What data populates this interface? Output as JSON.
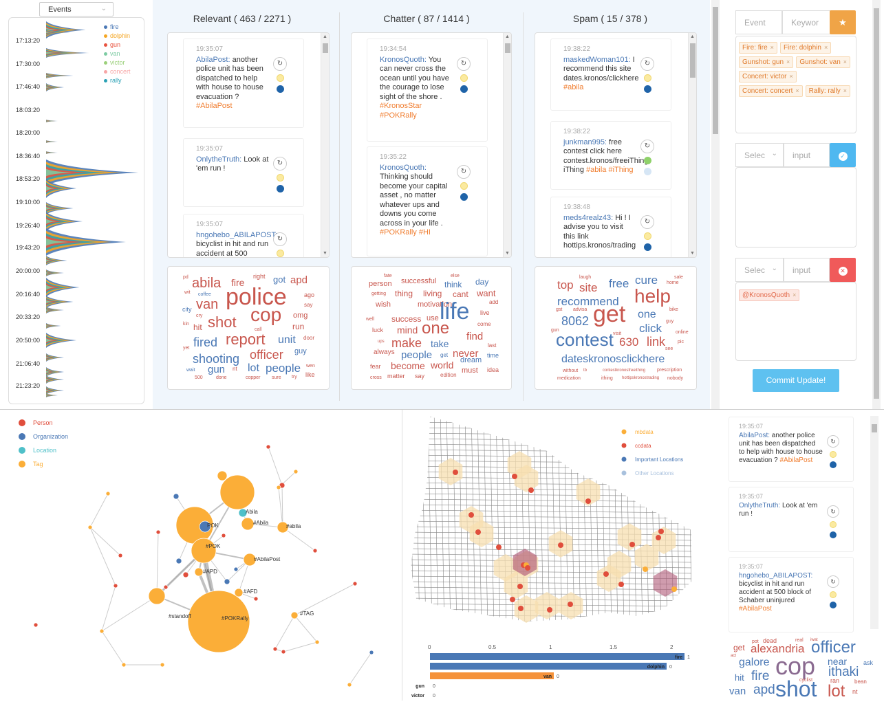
{
  "events_select": {
    "label": "Events"
  },
  "legend": [
    {
      "name": "fire",
      "color": "#4a78b5"
    },
    {
      "name": "dolphin",
      "color": "#f5a623"
    },
    {
      "name": "gun",
      "color": "#e8533f"
    },
    {
      "name": "van",
      "color": "#7ccba2"
    },
    {
      "name": "victor",
      "color": "#9bd07a"
    },
    {
      "name": "concert",
      "color": "#f7a6a6"
    },
    {
      "name": "rally",
      "color": "#2aa1b5"
    }
  ],
  "times": [
    "17:13:20",
    "17:30:00",
    "17:46:40",
    "18:03:20",
    "18:20:00",
    "18:36:40",
    "18:53:20",
    "19:10:00",
    "19:26:40",
    "19:43:20",
    "20:00:00",
    "20:16:40",
    "20:33:20",
    "20:50:00",
    "21:06:40",
    "21:23:20"
  ],
  "columns": {
    "relevant": "Relevant ( 463 / 2271 )",
    "chatter": "Chatter ( 87 / 1414 )",
    "spam": "Spam ( 15 / 378 )"
  },
  "relevant_cards": [
    {
      "ts": "19:35:07",
      "user": "AbilaPost:",
      "text": " another police unit has been dispatched to help with house to house evacuation ? ",
      "tag": "#AbilaPost"
    },
    {
      "ts": "19:35:07",
      "user": "OnlytheTruth:",
      "text": " Look at 'em run !",
      "tag": ""
    },
    {
      "ts": "19:35:07",
      "user": "hngohebo_ABILAPOST:",
      "text": " bicyclist in hit and run accident at 500",
      "tag": ""
    }
  ],
  "chatter_cards": [
    {
      "ts": "19:34:54",
      "user": "KronosQuoth:",
      "text": " You can never cross the ocean until you have the courage to lose sight of the shore . ",
      "tag": "#KronosStar #POKRally"
    },
    {
      "ts": "19:35:22",
      "user": "KronosQuoth:",
      "text": " Thinking should become your capital asset , no matter whatever ups and downs you come across in your life . ",
      "tag": "#POKRally #HI"
    }
  ],
  "spam_cards": [
    {
      "ts": "19:38:22",
      "user": "maskedWoman101:",
      "text": " I recommend this site dates.kronos/clickhere ",
      "tag": "#abila"
    },
    {
      "ts": "19:38:22",
      "user": "junkman995:",
      "text": " free contest click here contest.kronos/freeiThing iThing ",
      "tag": "#abila #iThing"
    },
    {
      "ts": "19:38:48",
      "user": "meds4realz43:",
      "text": " Hi ! I advise you to visit this link hottips.kronos/trading",
      "tag": ""
    }
  ],
  "wc_relevant": [
    "pd",
    "abila",
    "fire",
    "right",
    "got",
    "apd",
    "wit",
    "coffee",
    "police",
    "ago",
    "van",
    "city",
    "say",
    "cry",
    "cop",
    "omg",
    "kin",
    "hit",
    "shot",
    "call",
    "run",
    "fired",
    "report",
    "unit",
    "door",
    "yet",
    "shooting",
    "officer",
    "guy",
    "wait",
    "gun",
    "lot",
    "people",
    "wen",
    "500",
    "done",
    "nt",
    "copper",
    "sure",
    "try",
    "like"
  ],
  "wc_chatter": [
    "fate",
    "else",
    "person",
    "successful",
    "think",
    "day",
    "getting",
    "thing",
    "living",
    "cant",
    "want",
    "wish",
    "motivation",
    "add",
    "life",
    "well",
    "success",
    "use",
    "live",
    "luck",
    "mind",
    "one",
    "come",
    "find",
    "ups",
    "make",
    "take",
    "last",
    "always",
    "people",
    "get",
    "never",
    "dream",
    "time",
    "fear",
    "become",
    "world",
    "must",
    "idea",
    "cross",
    "matter",
    "say",
    "edition"
  ],
  "wc_spam": [
    "laugh",
    "sale",
    "top",
    "site",
    "free",
    "cure",
    "home",
    "recommend",
    "help",
    "gst",
    "advisa",
    "bike",
    "8062",
    "get",
    "one",
    "guy",
    "gun",
    "click",
    "visit",
    "online",
    "contest",
    "630",
    "link",
    "pic",
    "see",
    "dateskronosclickhere",
    "without",
    "tb",
    "contestkronosfreeithing",
    "prescription",
    "medication",
    "ithing",
    "hottipskronostrading",
    "nobody"
  ],
  "right_tabs": {
    "event": "Event",
    "keyword": "Keywor",
    "select1": "Selec",
    "input1": "input",
    "select2": "Selec",
    "input2": "input"
  },
  "chips_event": [
    "Fire: fire",
    "Fire: dolphin",
    "Gunshot: gun",
    "Gunshot: van",
    "Concert: victor",
    "Concert: concert",
    "Rally: rally"
  ],
  "chips_user": [
    "@KronosQuoth"
  ],
  "commit_label": "Commit Update!",
  "network_legend": [
    {
      "name": "Person",
      "color": "#e04e3c"
    },
    {
      "name": "Organization",
      "color": "#4a78b5"
    },
    {
      "name": "Location",
      "color": "#4fc0c9"
    },
    {
      "name": "Tag",
      "color": "#fbae38"
    }
  ],
  "network_labels": [
    "Abila",
    "#Abila",
    "#abila",
    "#POK",
    "#APD",
    "#AbilaPost",
    "#AFD",
    "#standoff",
    "#POKRally",
    "#TAG",
    "POK"
  ],
  "map_legend": [
    {
      "name": "mbdata",
      "color": "#fbae38"
    },
    {
      "name": "ccdata",
      "color": "#e04e3c"
    },
    {
      "name": "Important Locations",
      "color": "#4a78b5"
    },
    {
      "name": "Other Locations",
      "color": "#a9c1dd"
    }
  ],
  "bar_axis": [
    "0",
    "0.5",
    "1",
    "1.5",
    "2"
  ],
  "bars": [
    {
      "label": "fire",
      "value": 1,
      "color": "#4a78b5",
      "inside": true
    },
    {
      "label": "dolphin",
      "value": 0,
      "color": "#4a78b5",
      "inside": true
    },
    {
      "label": "van",
      "value": 0,
      "color": "#f5923a",
      "inside": true
    },
    {
      "label": "gun",
      "value": 0,
      "color": "#4a78b5",
      "inside": false
    },
    {
      "label": "victor",
      "value": 0,
      "color": "#4a78b5",
      "inside": false
    }
  ],
  "rfeed_cards": [
    {
      "ts": "19:35:07",
      "user": "AbilaPost:",
      "text": " another police unit has been dispatched to help with house to house evacuation ? ",
      "tag": "#AbilaPost"
    },
    {
      "ts": "19:35:07",
      "user": "OnlytheTruth:",
      "text": " Look at 'em run !",
      "tag": ""
    },
    {
      "ts": "19:35:07",
      "user": "hngohebo_ABILAPOST:",
      "text": " bicyclist in hit and run accident at 500 block of Schaber uninjured ",
      "tag": "#AbilaPost"
    }
  ],
  "wc_bottom": [
    "pot",
    "dead",
    "real",
    "iwat",
    "get",
    "alexandria",
    "officer",
    "act",
    "galore",
    "cop",
    "near",
    "ask",
    "hit",
    "fire",
    "cyclist",
    "ithaki",
    "ran",
    "bean",
    "van",
    "apd",
    "shot",
    "lot",
    "nt"
  ]
}
